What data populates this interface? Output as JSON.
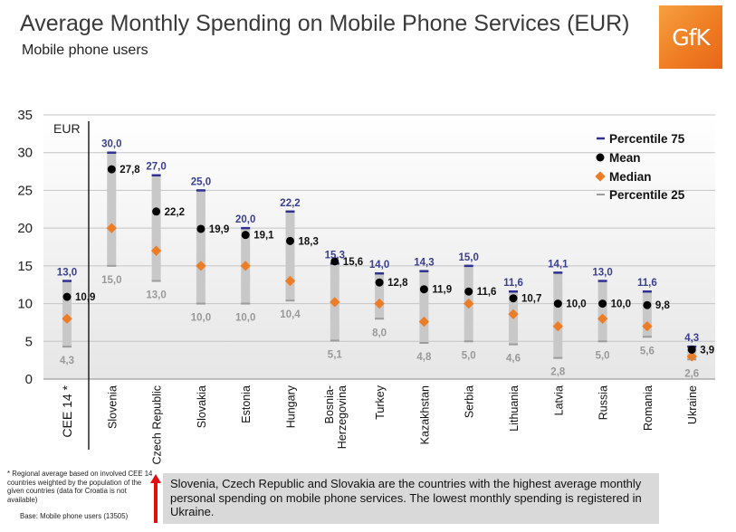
{
  "header": {
    "title": "Average Monthly Spending on Mobile Phone Services (EUR)",
    "subtitle": "Mobile phone users",
    "logo_text": "GfK"
  },
  "colors": {
    "p75": "#2e3192",
    "mean": "#000000",
    "median": "#ec7c25",
    "p25": "#9c9c9c",
    "bar": "#c8c8c8",
    "p75_label": "#3a3f8f",
    "p25_label": "#999999"
  },
  "chart_data": {
    "type": "bar",
    "title": "Average Monthly Spending on Mobile Phone Services (EUR)",
    "ylabel": "EUR",
    "ylim": [
      0,
      35
    ],
    "yticks": [
      "0",
      "5",
      "10",
      "15",
      "20",
      "25",
      "30",
      "35"
    ],
    "grid": true,
    "legend_position": "top-right",
    "categories": [
      "CEE 14 *",
      "Slovenia",
      "Czech Republic",
      "Slovakia",
      "Estonia",
      "Hungary",
      "Bosnia-Herzegovina",
      "Turkey",
      "Kazakhstan",
      "Serbia",
      "Lithuania",
      "Latvia",
      "Russia",
      "Romania",
      "Ukraine"
    ],
    "series": [
      {
        "name": "Percentile 75",
        "values": [
          13.0,
          30.0,
          27.0,
          25.0,
          20.0,
          22.2,
          15.3,
          14.0,
          14.3,
          15.0,
          11.6,
          14.1,
          13.0,
          11.6,
          4.3
        ],
        "labels": [
          "13,0",
          "30,0",
          "27,0",
          "25,0",
          "20,0",
          "22,2",
          "15,3",
          "14,0",
          "14,3",
          "15,0",
          "11,6",
          "14,1",
          "13,0",
          "11,6",
          "4,3"
        ]
      },
      {
        "name": "Mean",
        "values": [
          10.9,
          27.8,
          22.2,
          19.9,
          19.1,
          18.3,
          15.6,
          12.8,
          11.9,
          11.6,
          10.7,
          10.0,
          10.0,
          9.8,
          3.9
        ],
        "labels": [
          "10,9",
          "27,8",
          "22,2",
          "19,9",
          "19,1",
          "18,3",
          "15,6",
          "12,8",
          "11,9",
          "11,6",
          "10,7",
          "10,0",
          "10,0",
          "9,8",
          "3,9"
        ]
      },
      {
        "name": "Median",
        "values": [
          8,
          20,
          17,
          15,
          15,
          13,
          10.2,
          10,
          7.6,
          10,
          8.6,
          7,
          8,
          7,
          3
        ]
      },
      {
        "name": "Percentile 25",
        "values": [
          4.3,
          15.0,
          13.0,
          10.0,
          10.0,
          10.4,
          5.1,
          8.0,
          4.8,
          5.0,
          4.6,
          2.8,
          5.0,
          5.6,
          2.6
        ],
        "labels": [
          "4,3",
          "15,0",
          "13,0",
          "10,0",
          "10,0",
          "10,4",
          "5,1",
          "8,0",
          "4,8",
          "5,0",
          "4,6",
          "2,8",
          "5,0",
          "5,6",
          "2,6"
        ]
      }
    ]
  },
  "notes": {
    "footnote": "* Regional average based on involved CEE 14 countries weighted by the population of the given countries (data for Croatia is not available)",
    "base": "Base: Mobile phone users (13505)",
    "conclusion": "Slovenia, Czech Republic and Slovakia are the countries with the highest average monthly personal spending on mobile phone services. The lowest monthly spending is registered in Ukraine."
  }
}
